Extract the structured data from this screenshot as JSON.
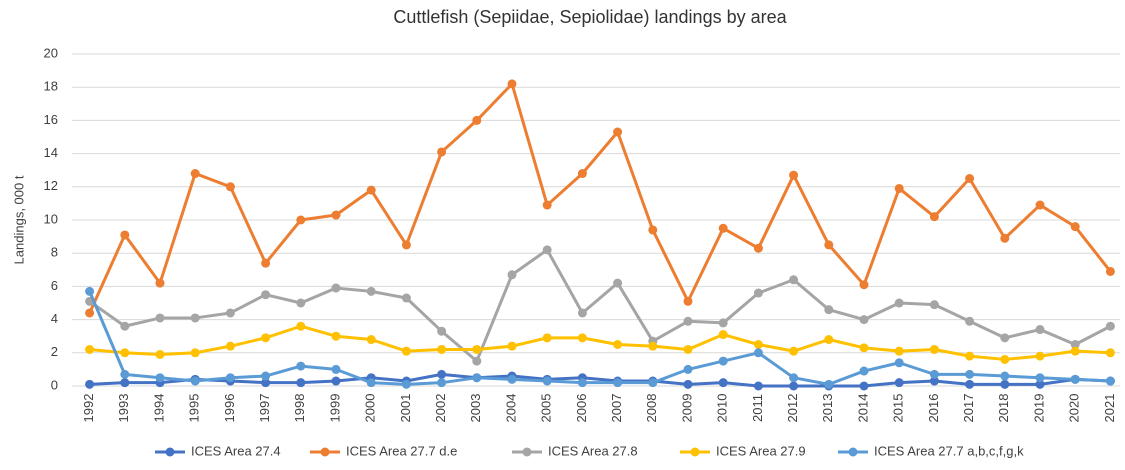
{
  "chart_data": {
    "type": "line",
    "title": "Cuttlefish (Sepiidae, Sepiolidae) landings by area",
    "ylabel": "Landings, 000 t",
    "categories": [
      "1992",
      "1993",
      "1994",
      "1995",
      "1996",
      "1997",
      "1998",
      "1999",
      "2000",
      "2001",
      "2002",
      "2003",
      "2004",
      "2005",
      "2006",
      "2007",
      "2008",
      "2009",
      "2010",
      "2011",
      "2012",
      "2013",
      "2014",
      "2015",
      "2016",
      "2017",
      "2018",
      "2019",
      "2020",
      "2021"
    ],
    "series": [
      {
        "name": "ICES Area 27.4",
        "color": "#4472c4",
        "values": [
          0.1,
          0.2,
          0.2,
          0.4,
          0.3,
          0.2,
          0.2,
          0.3,
          0.5,
          0.3,
          0.7,
          0.5,
          0.6,
          0.4,
          0.5,
          0.3,
          0.3,
          0.1,
          0.2,
          0.0,
          0.0,
          0.0,
          0.0,
          0.2,
          0.3,
          0.1,
          0.1,
          0.1,
          0.4,
          0.3
        ]
      },
      {
        "name": "ICES Area 27.7 d.e",
        "color": "#ed7d31",
        "values": [
          4.4,
          9.1,
          6.2,
          12.8,
          12.0,
          7.4,
          10.0,
          10.3,
          11.8,
          8.5,
          14.1,
          16.0,
          18.2,
          10.9,
          12.8,
          15.3,
          9.4,
          5.1,
          9.5,
          8.3,
          12.7,
          8.5,
          6.1,
          11.9,
          10.2,
          12.5,
          8.9,
          10.9,
          9.6,
          6.9
        ]
      },
      {
        "name": "ICES Area 27.8",
        "color": "#a5a5a5",
        "values": [
          5.1,
          3.6,
          4.1,
          4.1,
          4.4,
          5.5,
          5.0,
          5.9,
          5.7,
          5.3,
          3.3,
          1.5,
          6.7,
          8.2,
          4.4,
          6.2,
          2.7,
          3.9,
          3.8,
          5.6,
          6.4,
          4.6,
          4.0,
          5.0,
          4.9,
          3.9,
          2.9,
          3.4,
          2.5,
          3.6
        ]
      },
      {
        "name": "ICES Area 27.9",
        "color": "#ffc000",
        "values": [
          2.2,
          2.0,
          1.9,
          2.0,
          2.4,
          2.9,
          3.6,
          3.0,
          2.8,
          2.1,
          2.2,
          2.2,
          2.4,
          2.9,
          2.9,
          2.5,
          2.4,
          2.2,
          3.1,
          2.5,
          2.1,
          2.8,
          2.3,
          2.1,
          2.2,
          1.8,
          1.6,
          1.8,
          2.1,
          2.0
        ]
      },
      {
        "name": "ICES Area 27.7 a,b,c,f,g,k",
        "color": "#5b9bd5",
        "values": [
          5.7,
          0.7,
          0.5,
          0.3,
          0.5,
          0.6,
          1.2,
          1.0,
          0.2,
          0.1,
          0.2,
          0.5,
          0.4,
          0.3,
          0.2,
          0.2,
          0.2,
          1.0,
          1.5,
          2.0,
          0.5,
          0.1,
          0.9,
          1.4,
          0.7,
          0.7,
          0.6,
          0.5,
          0.4,
          0.3
        ]
      }
    ],
    "ylim": [
      0,
      20
    ],
    "yticks": [
      0,
      2,
      4,
      6,
      8,
      10,
      12,
      14,
      16,
      18,
      20
    ],
    "grid": true,
    "legend": "bottom"
  }
}
